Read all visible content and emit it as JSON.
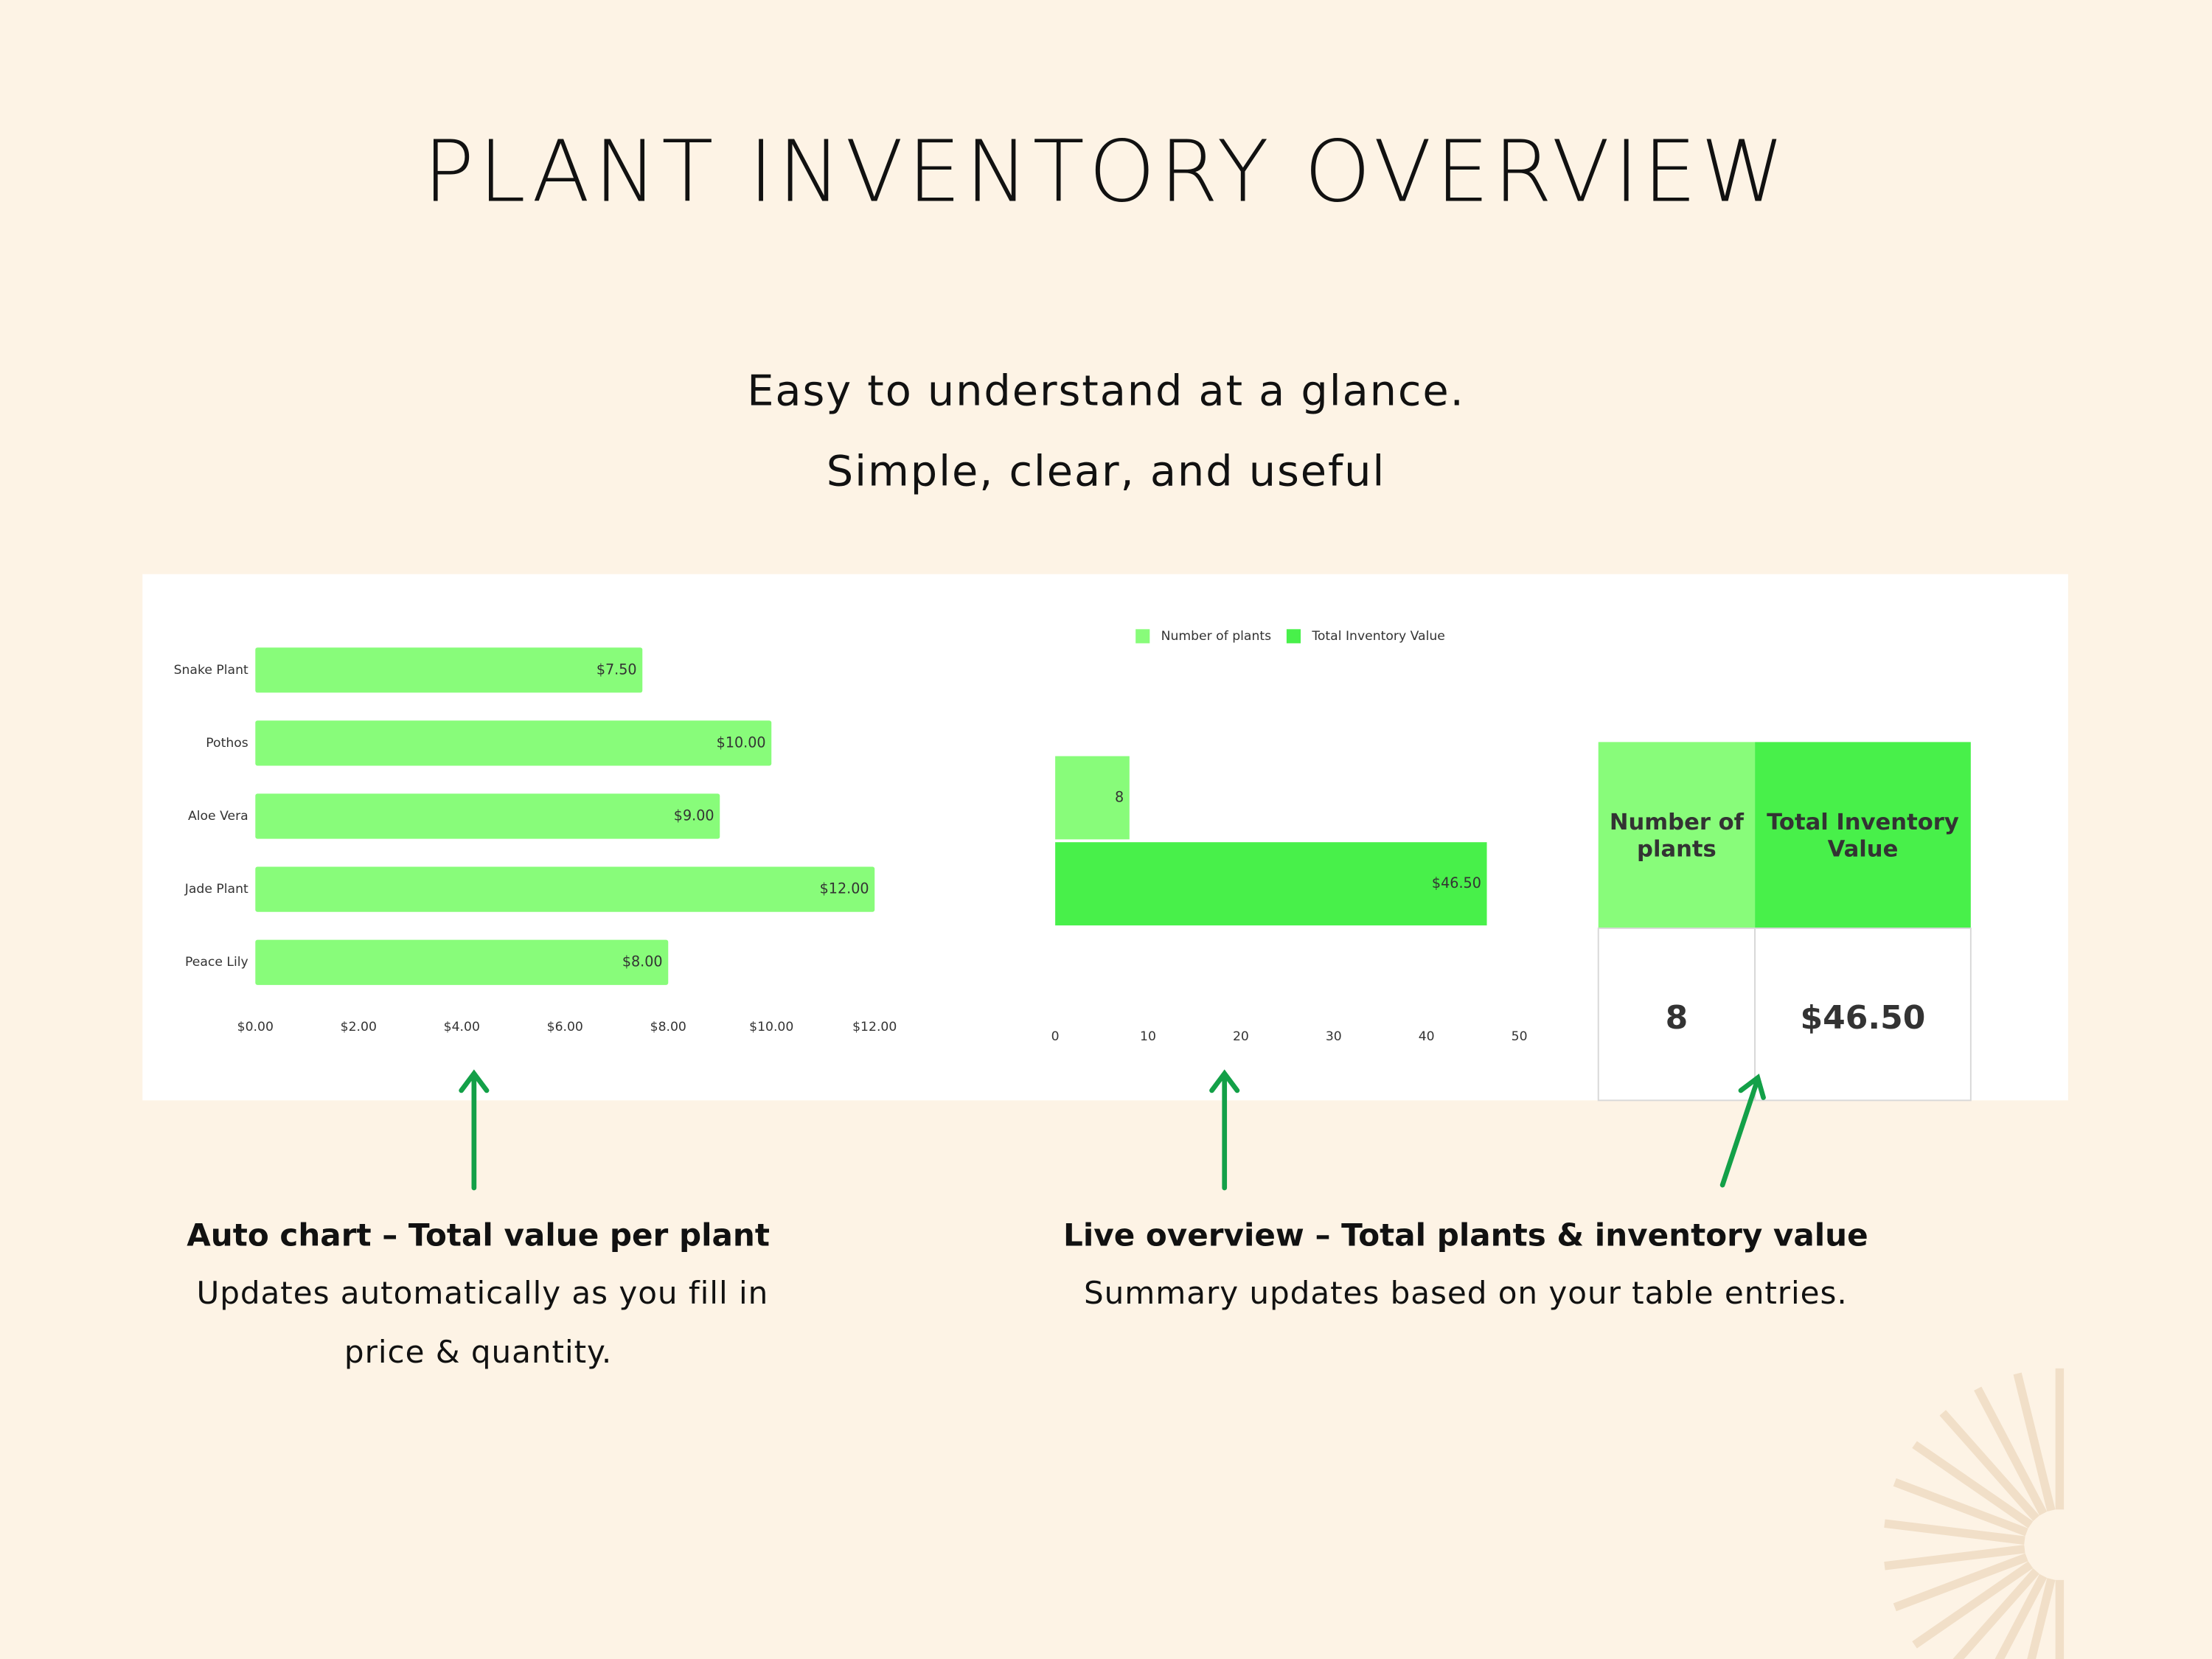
{
  "header": {
    "title": "PLANT INVENTORY OVERVIEW",
    "subtitle_lines": [
      "Easy to understand at a glance.",
      "Simple, clear, and useful"
    ]
  },
  "chart_data": [
    {
      "type": "bar",
      "categories": [
        "Snake Plant",
        "Pothos",
        "Aloe Vera",
        "Jade Plant",
        "Peace Lily"
      ],
      "values": [
        7.5,
        10,
        9,
        12,
        8
      ],
      "value_labels": [
        "$7.50",
        "$10.00",
        "$9.00",
        "$12.00",
        "$8.00"
      ],
      "color": "#88fc7a",
      "xlim": [
        0,
        12
      ],
      "xticks": [
        {
          "value": 0,
          "label": "$0.00"
        },
        {
          "value": 2,
          "label": "$2.00"
        },
        {
          "value": 4,
          "label": "$4.00"
        },
        {
          "value": 6,
          "label": "$6.00"
        },
        {
          "value": 8,
          "label": "$8.00"
        },
        {
          "value": 10,
          "label": "$10.00"
        },
        {
          "value": 12,
          "label": "$12.00"
        }
      ]
    },
    {
      "type": "bar",
      "categories": [
        null
      ],
      "series": [
        {
          "name": "Number of plants",
          "color": "#88fc7a",
          "values": [
            8
          ]
        },
        {
          "name": "Total Inventory Value",
          "color": "#48f04a",
          "values": [
            46.5
          ],
          "value_labels": [
            "$46.50"
          ]
        }
      ],
      "xlim": [
        0,
        50
      ],
      "xticks": [
        0,
        10,
        20,
        30,
        40,
        50
      ],
      "legend": "top"
    }
  ],
  "summary_table": {
    "headers": [
      "Number of plants",
      "Total Inventory Value"
    ],
    "rows": [
      [
        "8",
        "$46.50"
      ]
    ]
  },
  "captions": [
    {
      "title": "Auto chart – Total value per plant",
      "lines": [
        "Updates automatically as you fill in",
        "price & quantity."
      ]
    },
    {
      "title": "Live overview – Total plants & inventory value",
      "lines": [
        "Summary updates based on your table entries."
      ]
    }
  ]
}
